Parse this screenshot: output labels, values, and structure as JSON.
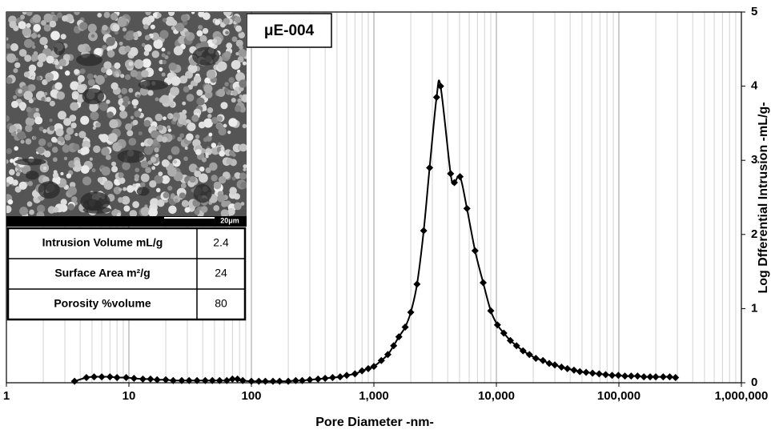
{
  "chart_data": {
    "type": "scatter-line",
    "annotation": "μE-004",
    "x_label": "Pore Diameter -nm-",
    "y_label": "Log Dfferential Intrusion -mL/g-",
    "x_log": true,
    "y_axis_side": "right",
    "grid": true,
    "minor_grid": true,
    "xlim": [
      1,
      1000000
    ],
    "xticks": [
      1,
      10,
      100,
      {
        "value": 1000,
        "label": "1,000"
      },
      {
        "value": 10000,
        "label": "10,000"
      },
      {
        "value": 100000,
        "label": "100,000"
      },
      {
        "value": 1000000,
        "label": "1,000,000"
      }
    ],
    "ylim": [
      0,
      5
    ],
    "yticks": [
      0,
      1,
      2,
      3,
      4,
      5
    ],
    "scale_bar": "20μm",
    "inset_table": [
      {
        "label": "Intrusion Volume mL/g",
        "value": 2.4
      },
      {
        "label": "Surface Area m²/g",
        "value": 24
      },
      {
        "label": "Porosity %volume",
        "value": 80
      }
    ],
    "series": [
      {
        "color": "#000000",
        "x": [
          3.6,
          4.5,
          5.2,
          6,
          7,
          8,
          9.5,
          11,
          13,
          15,
          17,
          20,
          23,
          27,
          31,
          36,
          42,
          48,
          55,
          63,
          70,
          77,
          85,
          100,
          115,
          130,
          150,
          170,
          200,
          230,
          260,
          300,
          350,
          400,
          460,
          530,
          600,
          700,
          800,
          900,
          1000,
          1150,
          1300,
          1450,
          1600,
          1800,
          2000,
          2250,
          2550,
          2850,
          3250,
          3500,
          4230,
          4540,
          5050,
          5750,
          6700,
          7800,
          9000,
          10200,
          11500,
          13000,
          14600,
          16500,
          18600,
          21000,
          24000,
          27000,
          30000,
          34000,
          38000,
          43000,
          48000,
          54000,
          61000,
          69000,
          78000,
          88000,
          99000,
          112000,
          126000,
          142000,
          160000,
          180000,
          200000,
          230000,
          260000,
          290000
        ],
        "values": [
          0.02,
          0.07,
          0.08,
          0.08,
          0.08,
          0.07,
          0.07,
          0.06,
          0.05,
          0.05,
          0.04,
          0.04,
          0.03,
          0.03,
          0.03,
          0.03,
          0.03,
          0.03,
          0.03,
          0.03,
          0.05,
          0.05,
          0.03,
          0.02,
          0.02,
          0.02,
          0.02,
          0.02,
          0.02,
          0.03,
          0.03,
          0.04,
          0.05,
          0.06,
          0.07,
          0.08,
          0.1,
          0.12,
          0.16,
          0.19,
          0.22,
          0.3,
          0.38,
          0.5,
          0.62,
          0.75,
          0.95,
          1.33,
          2.05,
          2.9,
          3.85,
          4.0,
          2.82,
          2.7,
          2.78,
          2.35,
          1.78,
          1.35,
          0.97,
          0.78,
          0.67,
          0.57,
          0.5,
          0.43,
          0.38,
          0.33,
          0.3,
          0.26,
          0.24,
          0.21,
          0.19,
          0.17,
          0.15,
          0.14,
          0.13,
          0.12,
          0.11,
          0.1,
          0.1,
          0.09,
          0.09,
          0.09,
          0.08,
          0.08,
          0.08,
          0.08,
          0.08,
          0.07
        ]
      }
    ]
  }
}
